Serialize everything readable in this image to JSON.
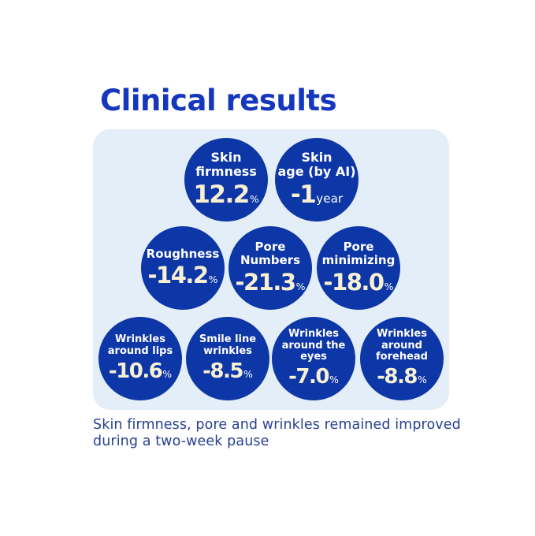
{
  "title": "Clinical results",
  "footnote": "Skin firmness, pore and wrinkles remained improved\nduring a two-week pause",
  "colors": {
    "title_blue": "#1537bd",
    "panel_background": "#e3eef8",
    "circle_blue": "#0d36a6",
    "number_cream": "#f8f0d3",
    "label_white": "#ffffff",
    "footnote_navy": "#27418f"
  },
  "rows": [
    {
      "circles": [
        {
          "label": "Skin\nfirmness",
          "value": "12.2",
          "unit": "%"
        },
        {
          "label": "Skin\nage (by AI)",
          "value": "-1",
          "unit": "year"
        }
      ]
    },
    {
      "circles": [
        {
          "label": "Roughness",
          "value": "-14.2",
          "unit": "%"
        },
        {
          "label": "Pore\nNumbers",
          "value": "-21.3",
          "unit": "%"
        },
        {
          "label": "Pore\nminimizing",
          "value": "-18.0",
          "unit": "%"
        }
      ]
    },
    {
      "circles": [
        {
          "label": "Wrinkles\naround lips",
          "value": "-10.6",
          "unit": "%"
        },
        {
          "label": "Smile line\nwrinkles",
          "value": "-8.5",
          "unit": "%"
        },
        {
          "label": "Wrinkles\naround the\neyes",
          "value": "-7.0",
          "unit": "%"
        },
        {
          "label": "Wrinkles\naround\nforehead",
          "value": "-8.8",
          "unit": "%"
        }
      ]
    }
  ],
  "chart_data": {
    "type": "table",
    "title": "Clinical results",
    "categories": [
      "Skin firmness",
      "Skin age (by AI)",
      "Roughness",
      "Pore Numbers",
      "Pore minimizing",
      "Wrinkles around lips",
      "Smile line wrinkles",
      "Wrinkles around the eyes",
      "Wrinkles around forehead"
    ],
    "values": [
      12.2,
      -1,
      -14.2,
      -21.3,
      -18.0,
      -10.6,
      -8.5,
      -7.0,
      -8.8
    ],
    "units": [
      "%",
      "year",
      "%",
      "%",
      "%",
      "%",
      "%",
      "%",
      "%"
    ],
    "annotation": "Skin firmness, pore and wrinkles remained improved during a two-week pause",
    "layout": "bubble grid: rows of 2, 3, 4 circles inside rounded light-blue panel"
  }
}
